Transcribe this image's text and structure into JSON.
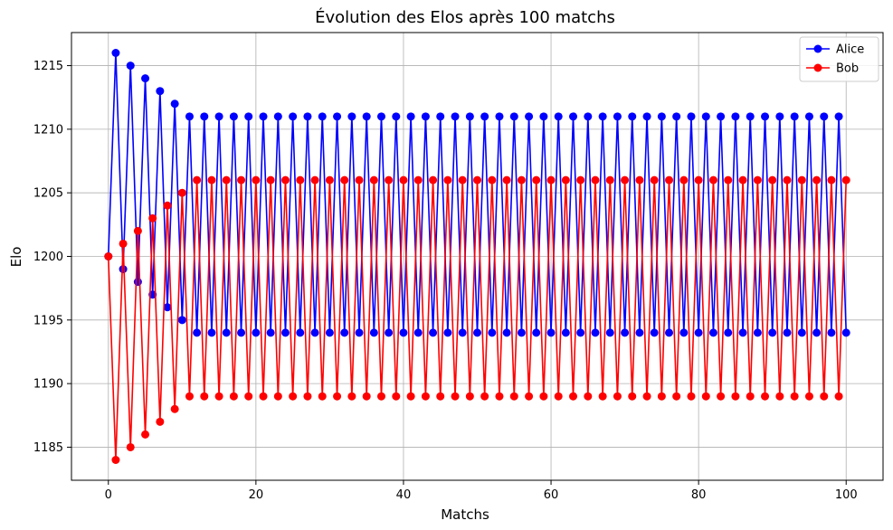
{
  "chart_data": {
    "type": "line",
    "title": "Évolution des Elos après 100 matchs",
    "xlabel": "Matchs",
    "ylabel": "Elo",
    "xlim": [
      -5,
      105
    ],
    "ylim": [
      1182.4,
      1217.6
    ],
    "xticks": [
      0,
      20,
      40,
      60,
      80,
      100
    ],
    "yticks": [
      1185,
      1190,
      1195,
      1200,
      1205,
      1210,
      1215
    ],
    "grid": true,
    "legend_position": "top-right",
    "x": [
      0,
      1,
      2,
      3,
      4,
      5,
      6,
      7,
      8,
      9,
      10,
      11,
      12,
      13,
      14,
      15,
      16,
      17,
      18,
      19,
      20,
      21,
      22,
      23,
      24,
      25,
      26,
      27,
      28,
      29,
      30,
      31,
      32,
      33,
      34,
      35,
      36,
      37,
      38,
      39,
      40,
      41,
      42,
      43,
      44,
      45,
      46,
      47,
      48,
      49,
      50,
      51,
      52,
      53,
      54,
      55,
      56,
      57,
      58,
      59,
      60,
      61,
      62,
      63,
      64,
      65,
      66,
      67,
      68,
      69,
      70,
      71,
      72,
      73,
      74,
      75,
      76,
      77,
      78,
      79,
      80,
      81,
      82,
      83,
      84,
      85,
      86,
      87,
      88,
      89,
      90,
      91,
      92,
      93,
      94,
      95,
      96,
      97,
      98,
      99,
      100
    ],
    "series": [
      {
        "name": "Alice",
        "color": "#0000ff",
        "values": [
          1200,
          1216,
          1199,
          1215,
          1198,
          1214,
          1197,
          1213,
          1196,
          1212,
          1195,
          1211,
          1194,
          1211,
          1194,
          1211,
          1194,
          1211,
          1194,
          1211,
          1194,
          1211,
          1194,
          1211,
          1194,
          1211,
          1194,
          1211,
          1194,
          1211,
          1194,
          1211,
          1194,
          1211,
          1194,
          1211,
          1194,
          1211,
          1194,
          1211,
          1194,
          1211,
          1194,
          1211,
          1194,
          1211,
          1194,
          1211,
          1194,
          1211,
          1194,
          1211,
          1194,
          1211,
          1194,
          1211,
          1194,
          1211,
          1194,
          1211,
          1194,
          1211,
          1194,
          1211,
          1194,
          1211,
          1194,
          1211,
          1194,
          1211,
          1194,
          1211,
          1194,
          1211,
          1194,
          1211,
          1194,
          1211,
          1194,
          1211,
          1194,
          1211,
          1194,
          1211,
          1194,
          1211,
          1194,
          1211,
          1194,
          1211,
          1194,
          1211,
          1194,
          1211,
          1194,
          1211,
          1194,
          1211,
          1194,
          1211,
          1194
        ]
      },
      {
        "name": "Bob",
        "color": "#ff0000",
        "values": [
          1200,
          1184,
          1201,
          1185,
          1202,
          1186,
          1203,
          1187,
          1204,
          1188,
          1205,
          1189,
          1206,
          1189,
          1206,
          1189,
          1206,
          1189,
          1206,
          1189,
          1206,
          1189,
          1206,
          1189,
          1206,
          1189,
          1206,
          1189,
          1206,
          1189,
          1206,
          1189,
          1206,
          1189,
          1206,
          1189,
          1206,
          1189,
          1206,
          1189,
          1206,
          1189,
          1206,
          1189,
          1206,
          1189,
          1206,
          1189,
          1206,
          1189,
          1206,
          1189,
          1206,
          1189,
          1206,
          1189,
          1206,
          1189,
          1206,
          1189,
          1206,
          1189,
          1206,
          1189,
          1206,
          1189,
          1206,
          1189,
          1206,
          1189,
          1206,
          1189,
          1206,
          1189,
          1206,
          1189,
          1206,
          1189,
          1206,
          1189,
          1206,
          1189,
          1206,
          1189,
          1206,
          1189,
          1206,
          1189,
          1206,
          1189,
          1206,
          1189,
          1206,
          1189,
          1206,
          1189,
          1206,
          1189,
          1206,
          1189,
          1206
        ]
      }
    ]
  }
}
